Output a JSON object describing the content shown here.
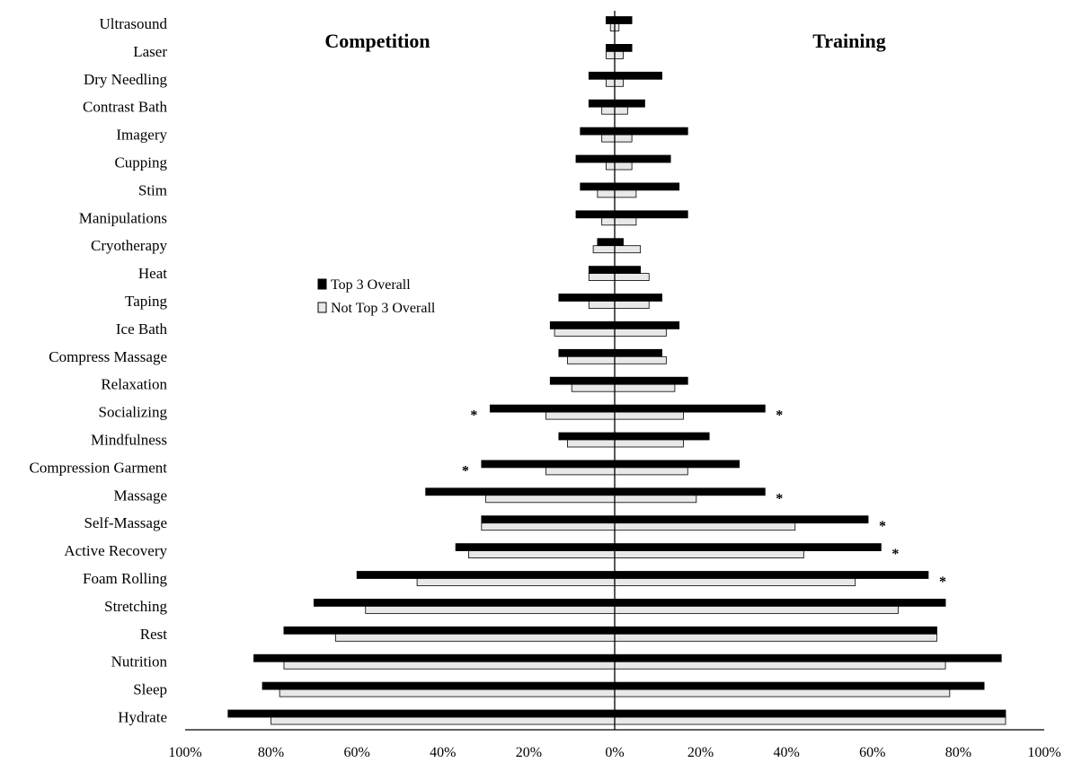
{
  "chart_data": {
    "type": "bar",
    "orientation": "horizontal-diverging",
    "panels": {
      "left": "Competition",
      "right": "Training"
    },
    "categories": [
      "Ultrasound",
      "Laser",
      "Dry Needling",
      "Contrast Bath",
      "Imagery",
      "Cupping",
      "Stim",
      "Manipulations",
      "Cryotherapy",
      "Heat",
      "Taping",
      "Ice Bath",
      "Compress Massage",
      "Relaxation",
      "Socializing",
      "Mindfulness",
      "Compression Garment",
      "Massage",
      "Self-Massage",
      "Active Recovery ",
      "Foam Rolling ",
      "Stretching",
      "Rest",
      "Nutrition",
      "Sleep",
      "Hydrate"
    ],
    "series": [
      {
        "name": "Top 3 Overall",
        "color": "#000000",
        "competition": [
          2,
          2,
          6,
          6,
          8,
          9,
          8,
          9,
          4,
          6,
          13,
          15,
          13,
          15,
          29,
          13,
          31,
          44,
          31,
          37,
          60,
          70,
          77,
          84,
          82,
          90
        ],
        "training": [
          4,
          4,
          11,
          7,
          17,
          13,
          15,
          17,
          2,
          6,
          11,
          15,
          11,
          17,
          35,
          22,
          29,
          35,
          59,
          62,
          73,
          77,
          75,
          90,
          86,
          91
        ]
      },
      {
        "name": "Not Top 3 Overall",
        "color": "#e8e8e8",
        "competition": [
          1,
          2,
          2,
          3,
          3,
          2,
          4,
          3,
          5,
          6,
          6,
          14,
          11,
          10,
          16,
          11,
          16,
          30,
          31,
          34,
          46,
          58,
          65,
          77,
          78,
          80
        ],
        "training": [
          1,
          2,
          2,
          3,
          4,
          4,
          5,
          5,
          6,
          8,
          8,
          12,
          12,
          14,
          16,
          16,
          17,
          19,
          42,
          44,
          56,
          66,
          75,
          77,
          78,
          91
        ]
      }
    ],
    "significance": {
      "competition": [
        "Socializing",
        "Compression Garment"
      ],
      "training": [
        "Socializing",
        "Massage",
        "Self-Massage",
        "Active Recovery ",
        "Foam Rolling "
      ]
    },
    "significance_marker": "*",
    "x_ticks": [
      "100%",
      "80%",
      "60%",
      "40%",
      "20%",
      "0%",
      "20%",
      "40%",
      "60%",
      "80%",
      "100%"
    ],
    "xlim": [
      -100,
      100
    ],
    "grid": false,
    "legend_position": "center-left"
  }
}
